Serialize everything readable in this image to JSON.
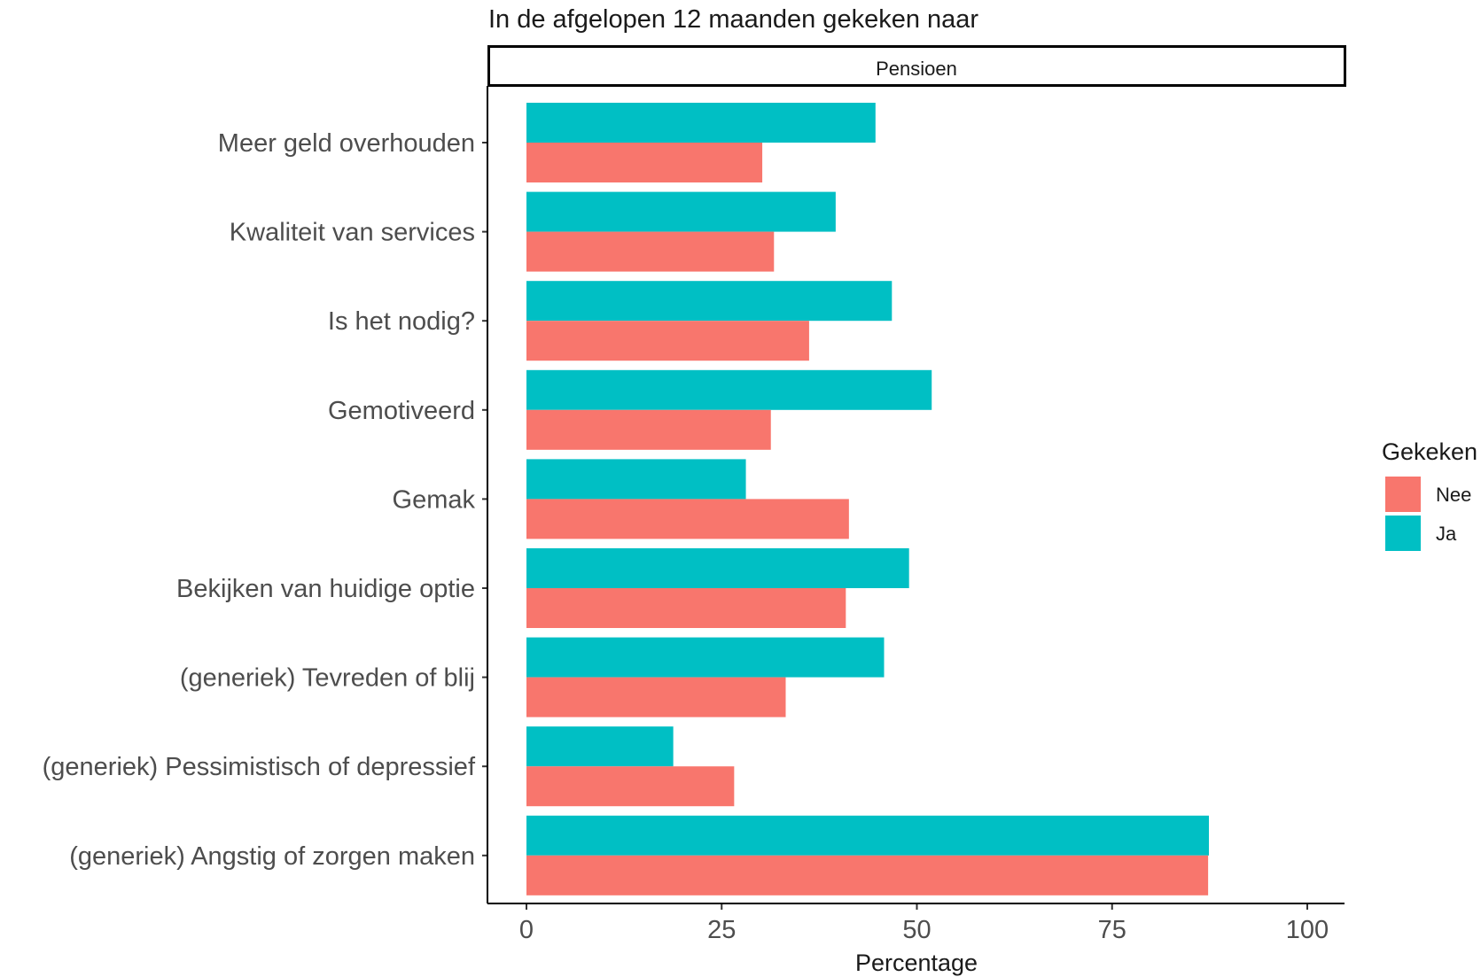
{
  "chart_data": {
    "type": "bar",
    "orientation": "horizontal",
    "title": "In de afgelopen 12 maanden gekeken naar",
    "facet_label": "Pensioen",
    "xlabel": "Percentage",
    "ylabel": "",
    "xlim": [
      0,
      100
    ],
    "xticks": [
      0,
      25,
      50,
      75,
      100
    ],
    "grid": false,
    "legend": {
      "title": "Gekeken",
      "position": "right"
    },
    "categories": [
      "Meer geld overhouden",
      "Kwaliteit van services",
      "Is het nodig?",
      "Gemotiveerd",
      "Gemak",
      "Bekijken van huidige optie",
      "(generiek) Tevreden of blij",
      "(generiek) Pessimistisch of depressief",
      "(generiek) Angstig of zorgen maken"
    ],
    "series": [
      {
        "name": "Nee",
        "color": "#F8766D",
        "values": [
          30.2,
          31.7,
          36.2,
          31.3,
          41.3,
          40.9,
          33.2,
          26.6,
          87.3
        ]
      },
      {
        "name": "Ja",
        "color": "#00BFC4",
        "values": [
          44.7,
          39.6,
          46.8,
          51.9,
          28.1,
          49.0,
          45.8,
          18.8,
          87.4
        ]
      }
    ]
  }
}
